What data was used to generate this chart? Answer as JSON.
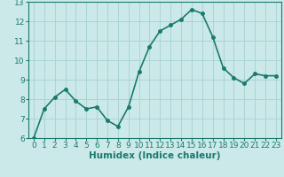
{
  "x": [
    0,
    1,
    2,
    3,
    4,
    5,
    6,
    7,
    8,
    9,
    10,
    11,
    12,
    13,
    14,
    15,
    16,
    17,
    18,
    19,
    20,
    21,
    22,
    23
  ],
  "y": [
    6.0,
    7.5,
    8.1,
    8.5,
    7.9,
    7.5,
    7.6,
    6.9,
    6.6,
    7.6,
    9.4,
    10.7,
    11.5,
    11.8,
    12.1,
    12.6,
    12.4,
    11.2,
    9.6,
    9.1,
    8.8,
    9.3,
    9.2,
    9.2
  ],
  "line_color": "#1a7a6e",
  "marker": "o",
  "marker_size": 2.5,
  "bg_color": "#cce9e9",
  "grid_color": "#aad4d4",
  "xlabel": "Humidex (Indice chaleur)",
  "ylim": [
    6,
    13
  ],
  "xlim": [
    -0.5,
    23.5
  ],
  "yticks": [
    6,
    7,
    8,
    9,
    10,
    11,
    12,
    13
  ],
  "xticks": [
    0,
    1,
    2,
    3,
    4,
    5,
    6,
    7,
    8,
    9,
    10,
    11,
    12,
    13,
    14,
    15,
    16,
    17,
    18,
    19,
    20,
    21,
    22,
    23
  ],
  "xlabel_fontsize": 7.5,
  "tick_fontsize": 6.5,
  "axis_color": "#1a7a6e",
  "line_width": 1.2
}
